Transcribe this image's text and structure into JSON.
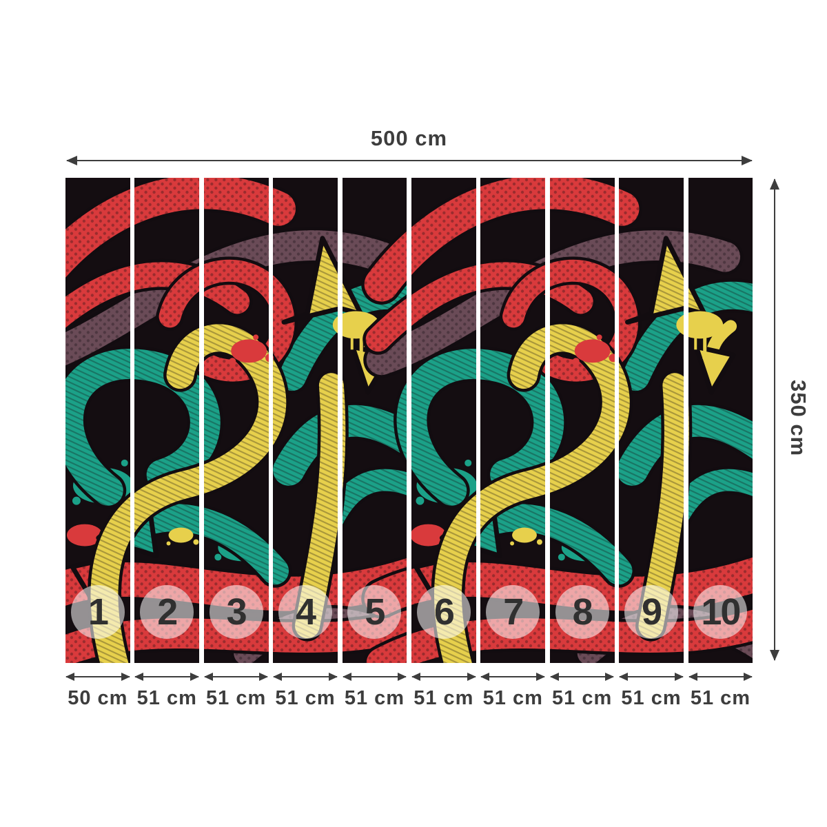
{
  "dimensions": {
    "total_width": "500 cm",
    "total_height": "350 cm"
  },
  "panels": [
    {
      "number": "1",
      "width": "50 cm"
    },
    {
      "number": "2",
      "width": "51 cm"
    },
    {
      "number": "3",
      "width": "51 cm"
    },
    {
      "number": "4",
      "width": "51 cm"
    },
    {
      "number": "5",
      "width": "51 cm"
    },
    {
      "number": "6",
      "width": "51 cm"
    },
    {
      "number": "7",
      "width": "51 cm"
    },
    {
      "number": "8",
      "width": "51 cm"
    },
    {
      "number": "9",
      "width": "51 cm"
    },
    {
      "number": "10",
      "width": "51 cm"
    }
  ],
  "artwork": {
    "description": "Graffiti-style mural of tangled 3D ribbon arrows, repeated motif",
    "palette": {
      "bg": "#140d11",
      "red": "#d93a3c",
      "teal": "#1ba188",
      "yellow": "#e7d04c",
      "maroon": "#6a4b57",
      "outline": "#120c10",
      "dim": "#3d3d3d",
      "divider": "#ffffff",
      "circle-fill": "rgba(255,255,255,0.55)",
      "circle-num": "#303030"
    }
  }
}
